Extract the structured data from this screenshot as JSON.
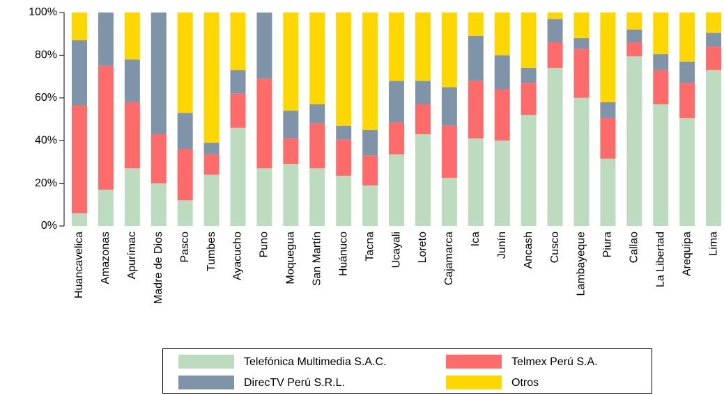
{
  "chart_data": {
    "type": "stacked_bar",
    "categories": [
      "Huancavelica",
      "Amazonas",
      "Apurímac",
      "Madre de Dios",
      "Pasco",
      "Tumbes",
      "Ayacucho",
      "Puno",
      "Moquegua",
      "San Martín",
      "Huánuco",
      "Tacna",
      "Ucayali",
      "Loreto",
      "Cajamarca",
      "Ica",
      "Junín",
      "Ancash",
      "Cusco",
      "Lambayeque",
      "Piura",
      "Callao",
      "La Libertad",
      "Arequipa",
      "Lima"
    ],
    "series": [
      {
        "name": "Telefónica Multimedia S.A.C.",
        "color": "#bddcbf",
        "values": [
          6,
          17,
          27,
          20,
          12,
          24,
          46,
          27,
          29,
          27,
          23.5,
          19,
          33.5,
          43,
          22.5,
          41,
          40,
          52,
          74,
          60,
          31.5,
          79.5,
          57,
          50.5,
          73
        ]
      },
      {
        "name": "Telmex Perú S.A.",
        "color": "#fe6b6b",
        "values": [
          50.5,
          58,
          31,
          23,
          24,
          9.5,
          16,
          42,
          12,
          21,
          17,
          14,
          15,
          14,
          24.5,
          27,
          24,
          15,
          12,
          23,
          19,
          6.5,
          16,
          16.5,
          11
        ]
      },
      {
        "name": "DirecTV Perú S.R.L.",
        "color": "#7f93a9",
        "values": [
          30.5,
          25,
          20,
          57,
          17,
          5.5,
          11,
          31,
          13,
          9,
          6.5,
          12,
          19.5,
          11,
          18,
          21,
          16,
          7,
          11,
          5,
          7.5,
          6,
          7.5,
          10,
          6.5
        ]
      },
      {
        "name": "Otros",
        "color": "#ffd700",
        "values": [
          13,
          0,
          22,
          0,
          47,
          61,
          27,
          0,
          46,
          43,
          53,
          55,
          32,
          32,
          35,
          11,
          20,
          26,
          3,
          12,
          42,
          8,
          19.5,
          23,
          9.5
        ]
      }
    ],
    "ylim": [
      0,
      100
    ],
    "yticks": [
      {
        "value": 0,
        "label": "0%"
      },
      {
        "value": 20,
        "label": "20%"
      },
      {
        "value": 40,
        "label": "40%"
      },
      {
        "value": 60,
        "label": "60%"
      },
      {
        "value": 80,
        "label": "80%"
      },
      {
        "value": 100,
        "label": "100%"
      }
    ],
    "legend": "bottom"
  }
}
